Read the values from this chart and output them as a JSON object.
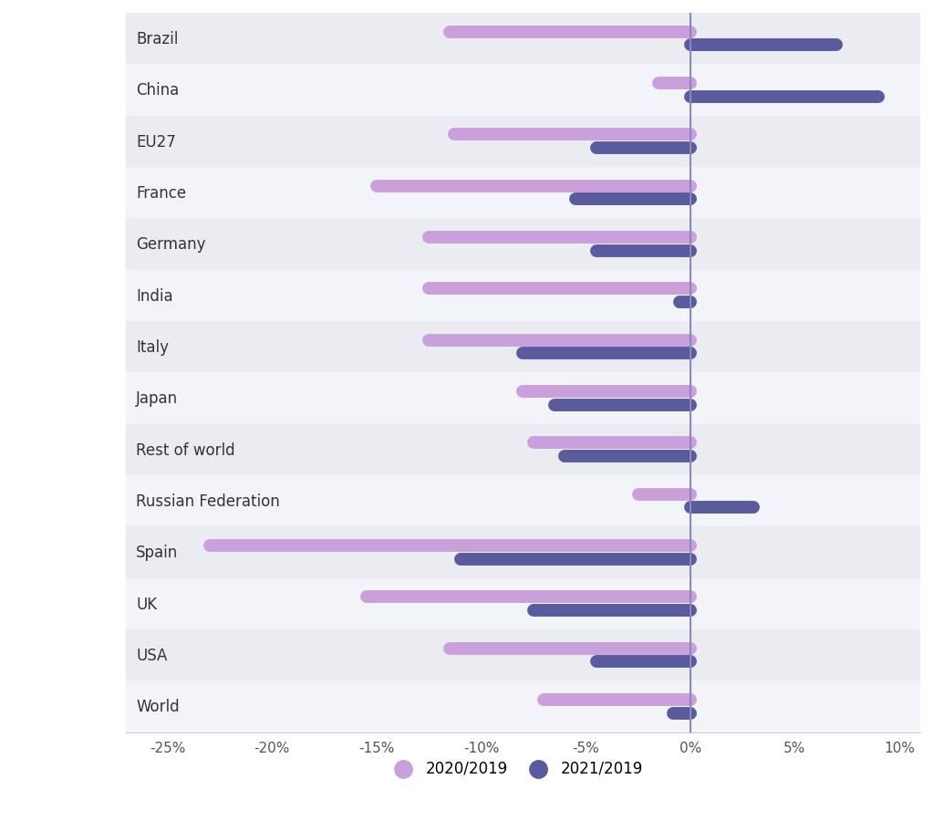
{
  "countries": [
    "Brazil",
    "China",
    "EU27",
    "France",
    "Germany",
    "India",
    "Italy",
    "Japan",
    "Rest of world",
    "Russian Federation",
    "Spain",
    "UK",
    "USA",
    "World"
  ],
  "has_flag": [
    true,
    true,
    true,
    true,
    true,
    true,
    true,
    true,
    false,
    true,
    true,
    true,
    true,
    false
  ],
  "values_2020": [
    -11.5,
    -1.5,
    -11.3,
    -15.0,
    -12.5,
    -12.5,
    -12.5,
    -8.0,
    -7.5,
    -2.5,
    -23.0,
    -15.5,
    -11.5,
    -7.0
  ],
  "values_2021": [
    7.0,
    9.0,
    -4.5,
    -5.5,
    -4.5,
    -0.5,
    -8.0,
    -6.5,
    -6.0,
    3.0,
    -11.0,
    -7.5,
    -4.5,
    -0.8
  ],
  "color_2020": "#c9a0dc",
  "color_2021": "#5a5a9f",
  "bar_height": 0.25,
  "xlim": [
    -27,
    11
  ],
  "xticks": [
    -25,
    -20,
    -15,
    -10,
    -5,
    0,
    5,
    10
  ],
  "xtick_labels": [
    "-25%",
    "-20%",
    "-15%",
    "-10%",
    "-5%",
    "0%",
    "5%",
    "10%"
  ],
  "background_color": "#ffffff",
  "row_colors": [
    "#eaecf2",
    "#f2f4f9"
  ],
  "zero_line_color": "#8888bb",
  "legend_label_2020": "2020/2019",
  "legend_label_2021": "2021/2019",
  "title_fontsize": 12,
  "tick_fontsize": 11
}
